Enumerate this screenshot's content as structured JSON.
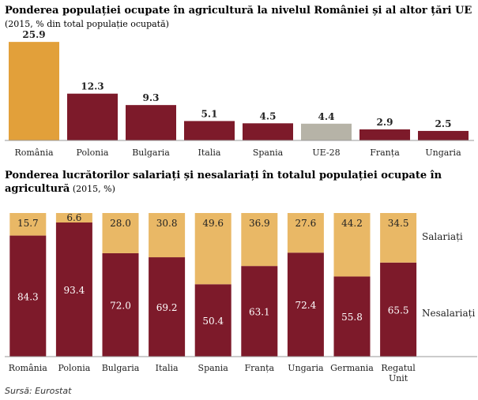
{
  "colors": {
    "highlight": "#e2a03a",
    "main": "#7d1a2a",
    "eu": "#b6b3a7",
    "employed": "#e9b866",
    "axis": "#9a9a9a"
  },
  "chart_data": [
    {
      "type": "bar",
      "title": "Ponderea populației ocupate în agricultură la nivelul României și al altor țări UE",
      "subtitle": "(2015, % din total populație ocupată)",
      "categories": [
        "România",
        "Polonia",
        "Bulgaria",
        "Italia",
        "Spania",
        "UE-28",
        "Franța",
        "Ungaria"
      ],
      "values": [
        25.9,
        12.3,
        9.3,
        5.1,
        4.5,
        4.4,
        2.9,
        2.5
      ],
      "value_labels": [
        "25.9",
        "12.3",
        "9.3",
        "5.1",
        "4.5",
        "4.4",
        "2.9",
        "2.5"
      ],
      "bar_colors": [
        "highlight",
        "main",
        "main",
        "main",
        "main",
        "eu",
        "main",
        "main"
      ],
      "ylim": [
        0,
        28
      ],
      "grid": false
    },
    {
      "type": "bar",
      "stacked": true,
      "title_bold": "Ponderea lucrătorilor salariați și nesalariați în totalul populației ocupate în agricultură",
      "title_normal": " (2015, %)",
      "categories": [
        "România",
        "Polonia",
        "Bulgaria",
        "Italia",
        "Spania",
        "Franța",
        "Ungaria",
        "Germania",
        "Regatul Unit"
      ],
      "series": [
        {
          "name": "Nesalariați",
          "values": [
            84.3,
            93.4,
            72.0,
            69.2,
            50.4,
            63.1,
            72.4,
            55.8,
            65.5
          ],
          "value_labels": [
            "84.3",
            "93.4",
            "72.0",
            "69.2",
            "50.4",
            "63.1",
            "72.4",
            "55.8",
            "65.5"
          ],
          "color": "main"
        },
        {
          "name": "Salariați",
          "values": [
            15.7,
            6.6,
            28.0,
            30.8,
            49.6,
            36.9,
            27.6,
            44.2,
            34.5
          ],
          "value_labels": [
            "15.7",
            "6.6",
            "28.0",
            "30.8",
            "49.6",
            "36.9",
            "27.6",
            "44.2",
            "34.5"
          ],
          "color": "employed"
        }
      ],
      "ylim": [
        0,
        100
      ],
      "legend": "right",
      "grid": false
    }
  ],
  "source_note": "Sursă: Eurostat"
}
